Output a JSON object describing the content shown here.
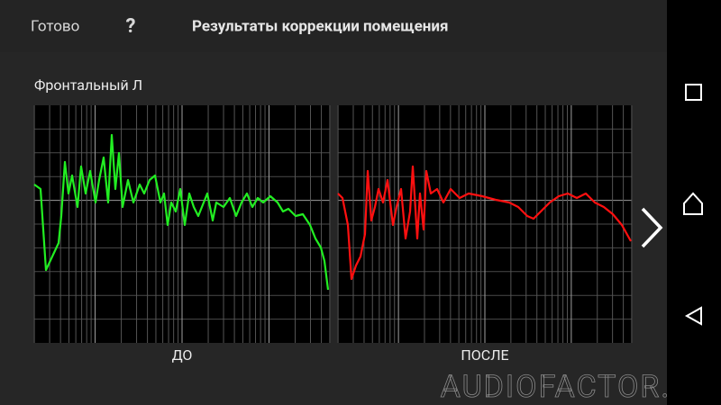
{
  "header": {
    "done": "Готово",
    "help": "?",
    "title": "Результаты коррекции помещения"
  },
  "channel_label": "Фронтальный Л",
  "plots": [
    {
      "label": "ДО"
    },
    {
      "label": "ПОСЛЕ"
    }
  ],
  "watermark": "AUDIOFACTOR.RU"
}
